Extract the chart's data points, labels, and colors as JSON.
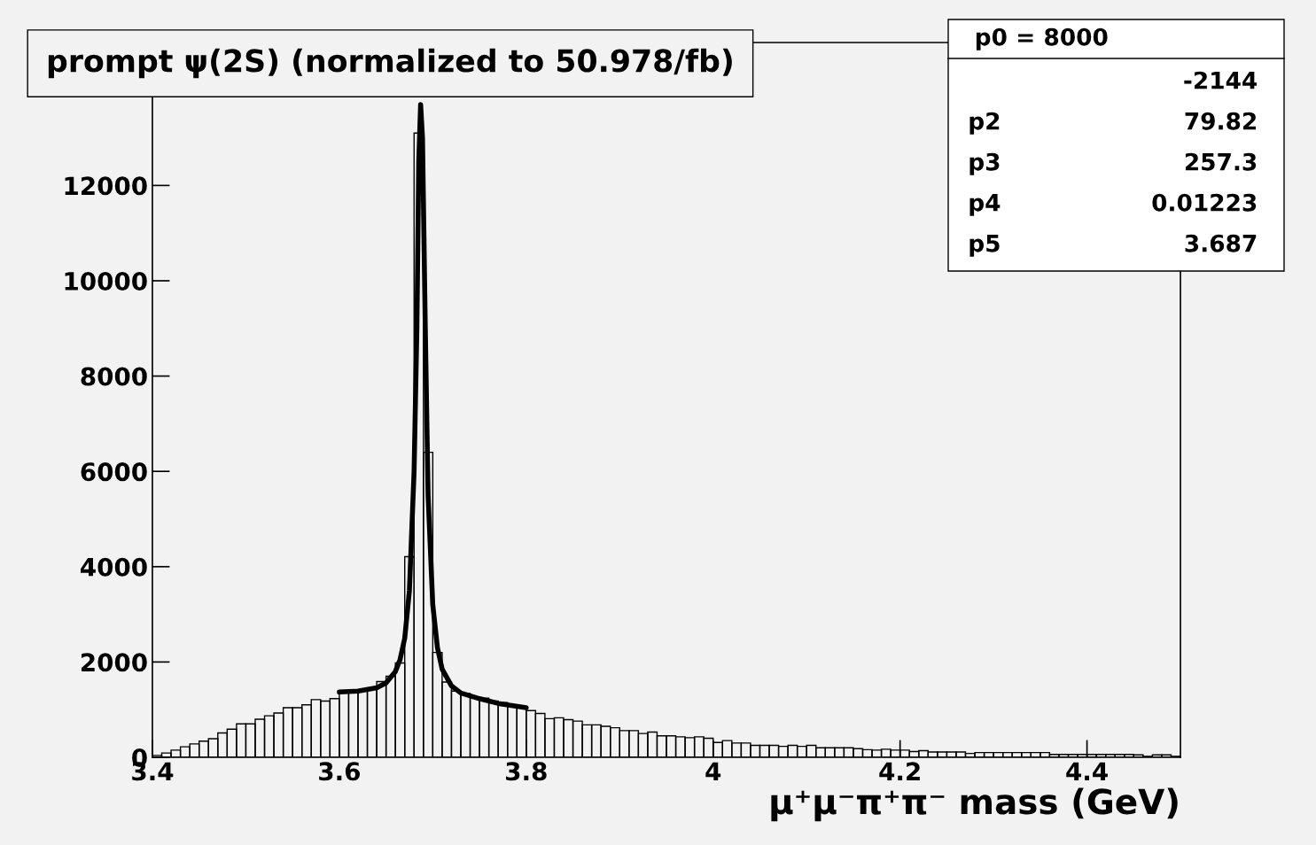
{
  "chart_data": {
    "type": "histogram",
    "title": "prompt ψ(2S) (normalized to 50.978/fb)",
    "xlabel": "μ⁺μ⁻π⁺π⁻ mass (GeV)",
    "bins": [
      3.4,
      3.41,
      3.42,
      3.43,
      3.44,
      3.45,
      3.46,
      3.47,
      3.48,
      3.49,
      3.5,
      3.51,
      3.52,
      3.53,
      3.54,
      3.55,
      3.56,
      3.57,
      3.58,
      3.59,
      3.6,
      3.61,
      3.62,
      3.63,
      3.64,
      3.65,
      3.66,
      3.67,
      3.68,
      3.69,
      3.7,
      3.71,
      3.72,
      3.73,
      3.74,
      3.75,
      3.76,
      3.77,
      3.78,
      3.79,
      3.8,
      3.81,
      3.82,
      3.83,
      3.84,
      3.85,
      3.86,
      3.87,
      3.88,
      3.89,
      3.9,
      3.91,
      3.92,
      3.93,
      3.94,
      3.95,
      3.96,
      3.97,
      3.98,
      3.99,
      4.0,
      4.01,
      4.02,
      4.03,
      4.04,
      4.05,
      4.06,
      4.07,
      4.08,
      4.09,
      4.1,
      4.11,
      4.12,
      4.13,
      4.14,
      4.15,
      4.16,
      4.17,
      4.18,
      4.19,
      4.2,
      4.21,
      4.22,
      4.23,
      4.24,
      4.25,
      4.26,
      4.27,
      4.28,
      4.29,
      4.3,
      4.31,
      4.32,
      4.33,
      4.34,
      4.35,
      4.36,
      4.37,
      4.38,
      4.39,
      4.4,
      4.41,
      4.42,
      4.43,
      4.44,
      4.45,
      4.46,
      4.47,
      4.48,
      4.49,
      4.5
    ],
    "values": [
      40,
      90,
      150,
      220,
      280,
      340,
      390,
      510,
      590,
      700,
      700,
      800,
      870,
      930,
      1040,
      1040,
      1100,
      1210,
      1180,
      1230,
      1360,
      1380,
      1400,
      1430,
      1590,
      1700,
      1980,
      4210,
      13100,
      6400,
      2200,
      1580,
      1390,
      1340,
      1270,
      1240,
      1180,
      1150,
      1100,
      1040,
      980,
      920,
      810,
      830,
      790,
      760,
      680,
      680,
      650,
      620,
      560,
      560,
      500,
      530,
      450,
      450,
      430,
      410,
      430,
      400,
      310,
      350,
      300,
      300,
      250,
      250,
      250,
      230,
      250,
      230,
      250,
      200,
      200,
      200,
      200,
      180,
      160,
      150,
      170,
      150,
      150,
      120,
      140,
      110,
      110,
      110,
      110,
      80,
      100,
      100,
      100,
      100,
      100,
      100,
      100,
      100,
      60,
      60,
      60,
      60,
      60,
      60,
      60,
      60,
      60,
      50,
      20,
      50,
      50,
      20
    ],
    "color": "#000000",
    "series": [
      {
        "type": "line",
        "color": "#000000",
        "x": [
          3.6,
          3.62,
          3.64,
          3.65,
          3.66,
          3.665,
          3.67,
          3.675,
          3.68,
          3.683,
          3.685,
          3.687,
          3.689,
          3.692,
          3.695,
          3.7,
          3.705,
          3.71,
          3.72,
          3.73,
          3.75,
          3.77,
          3.8
        ],
        "values": [
          1370,
          1390,
          1460,
          1560,
          1800,
          2050,
          2500,
          3500,
          6000,
          9000,
          12500,
          13700,
          13000,
          9000,
          5500,
          3200,
          2300,
          1850,
          1500,
          1350,
          1230,
          1130,
          1040
        ]
      }
    ],
    "xlim": [
      3.4,
      4.5
    ],
    "xticks": [
      3.4,
      3.6,
      3.8,
      4,
      4.2,
      4.4
    ],
    "ylim": [
      0,
      15000
    ],
    "yticks": [
      0,
      2000,
      4000,
      6000,
      8000,
      10000,
      12000
    ],
    "annotations": [
      "p0 = 8000",
      "-2144",
      "p2 79.82",
      "p3 257.3",
      "p4 0.01223",
      "p5 3.687"
    ]
  }
}
